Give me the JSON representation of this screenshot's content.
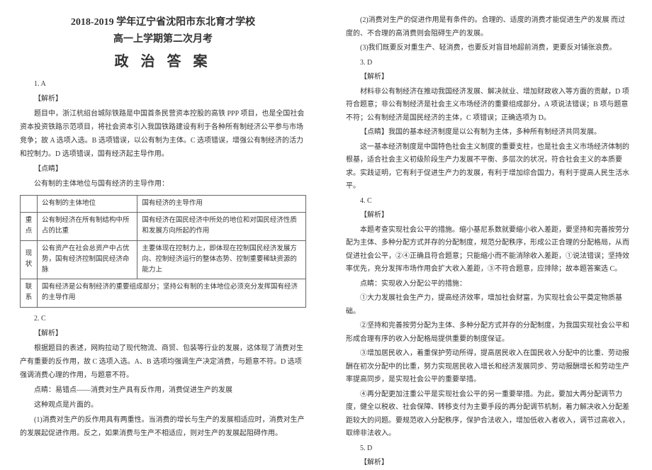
{
  "header": {
    "line1": "2018-2019 学年辽宁省沈阳市东北育才学校",
    "line2": "高一上学期第二次月考",
    "line3": "政 治 答 案"
  },
  "left": {
    "q1_num": "1. A",
    "q1_tag": "【解析】",
    "q1_p1": "题目中，浙江杭绍台城际铁路是中国首条民营资本控股的高铁 PPP 项目，也是全国社会资本投资铁路示范项目，将社会资本引入我国铁路建设有利于各种所有制经济公平参与市场竞争；故 A 选项入选。B 选项错误，以公有制为主体。C 选项错误，增强公有制经济的活力和控制力。D 选项错误，国有经济起主导作用。",
    "q1_tip": "【点睛】",
    "q1_p2": "公有制的主体地位与国有经济的主导作用：",
    "table": {
      "h1": "",
      "h2": "公有制的主体地位",
      "h3": "国有经济的主导作用",
      "r1c1": "重点",
      "r1c2": "公有制经济在所有制结构中所占的比重",
      "r1c3": "国有经济在国民经济中所处的地位和对国民经济性质和发展方向所起的作用",
      "r2c1": "现状",
      "r2c2": "公有资产在社会总资产中占优势，国有经济控制国民经济命脉",
      "r2c3": "主要体现在控制力上，即体现在控制国民经济发展方向、控制经济运行的整体态势、控制重要稀缺资源的能力上",
      "r3c1": "联系",
      "r3c2": "国有经济是公有制经济的重要组成部分；坚持公有制的主体地位必须充分发挥国有经济的主导作用"
    },
    "q2_num": "2. C",
    "q2_tag": "【解析】",
    "q2_p1": "根据题目的表述，网购拉动了现代物流、商贸、包装等行业的发展，这体现了消费对生产有重要的反作用，故 C 选项入选。A、B 选项均强调生产决定消费，与题意不符。D 选项强调消费心理的作用，与题意不符。",
    "q2_p2": "点睛：易错点——消费对生产具有反作用，消费促进生产的发展",
    "q2_p3": "这种观点是片面的。",
    "q2_p4": "(1)消费对生产的反作用具有两重性。当消费的增长与生产的发展相适应时，消费对生产的发展起促进作用。反之，如果消费与生产不相适应，则对生产的发展起阻碍作用。"
  },
  "right": {
    "p1": "(2)消费对生产的促进作用是有条件的。合理的、适度的消费才能促进生产的发展  而过度的、不合理的高消费则会阻碍生产的发展。",
    "p2": "(3)我们既要反对重生产、轻消费，也要反对盲目地超前消费，更要反对铺张浪费。",
    "q3_num": "3. D",
    "q3_tag": "【解析】",
    "q3_p1": "材料非公有制经济在推动我国经济发展、解决就业、增加财政收入等方面的贡献，D 项符合题意；非公有制经济是社会主义市场经济的重要组成部分，A 项说法错误；B 项与题意不符；公有制经济是国民经济的主体，C 项错误；正确选项为 D。",
    "q3_tip": "【点睛】我国的基本经济制度是以公有制为主体，多种所有制经济共同发展。",
    "q3_p2": "这一基本经济制度是中国特色社会主义制度的重要支柱，也是社会主义市场经济体制的根基，适合社会主义初级阶段生产力发展不平衡、多层次的状况，符合社会主义的本质要求。实践证明，它有利于促进生产力的发展，有利于增加综合国力，有利于提高人民生活水平。",
    "q4_num": "4. C",
    "q4_tag": "【解析】",
    "q4_p1": "本题考查实现社会公平的措施。缩小基尼系数就要缩小收入差距，要坚持和完善按劳分配为主体、多种分配方式并存的分配制度，规范分配秩序，形成公正合理的分配格局，从而促进社会公平，②④正确且符合题意；只能缩小而不能消除收入差距，①说法错误；坚持效率优先，充分发挥市场作用会扩大收入差距，③不符合题意，应排除；故本题答案选 C。",
    "q4_p2": "点睛：实现收入分配公平的措施：",
    "q4_p3": "①大力发展社会生产力，提高经济效率，增加社会财富，为实现社会公平奠定物质基础。",
    "q4_p4": "②坚持和完善按劳分配为主体、多种分配方式并存的分配制度，为我国实现社会公平和形成合理有序的收入分配格局提供重要的制度保证。",
    "q4_p5": "③增加居民收入，着重保护劳动所得，提高居民收入在国民收入分配中的比重、劳动报酬在初次分配中的比重，努力实现居民收入增长和经济发展同步、劳动报酬增长和劳动生产率提高同步，是实现社会公平的重要举措。",
    "q4_p6": "④再分配更加注重公平是实现社会公平的另一重要举措。为此，要加大再分配调节力度，健全以税收、社会保障、转移支付为主要手段的再分配调节机制，着力解决收入分配差距较大的问题。要规范收入分配秩序，保护合法收入，增加低收入者收入，调节过高收入，取缔非法收入。",
    "q5_num": "5. D",
    "q5_tag": "【解析】"
  }
}
